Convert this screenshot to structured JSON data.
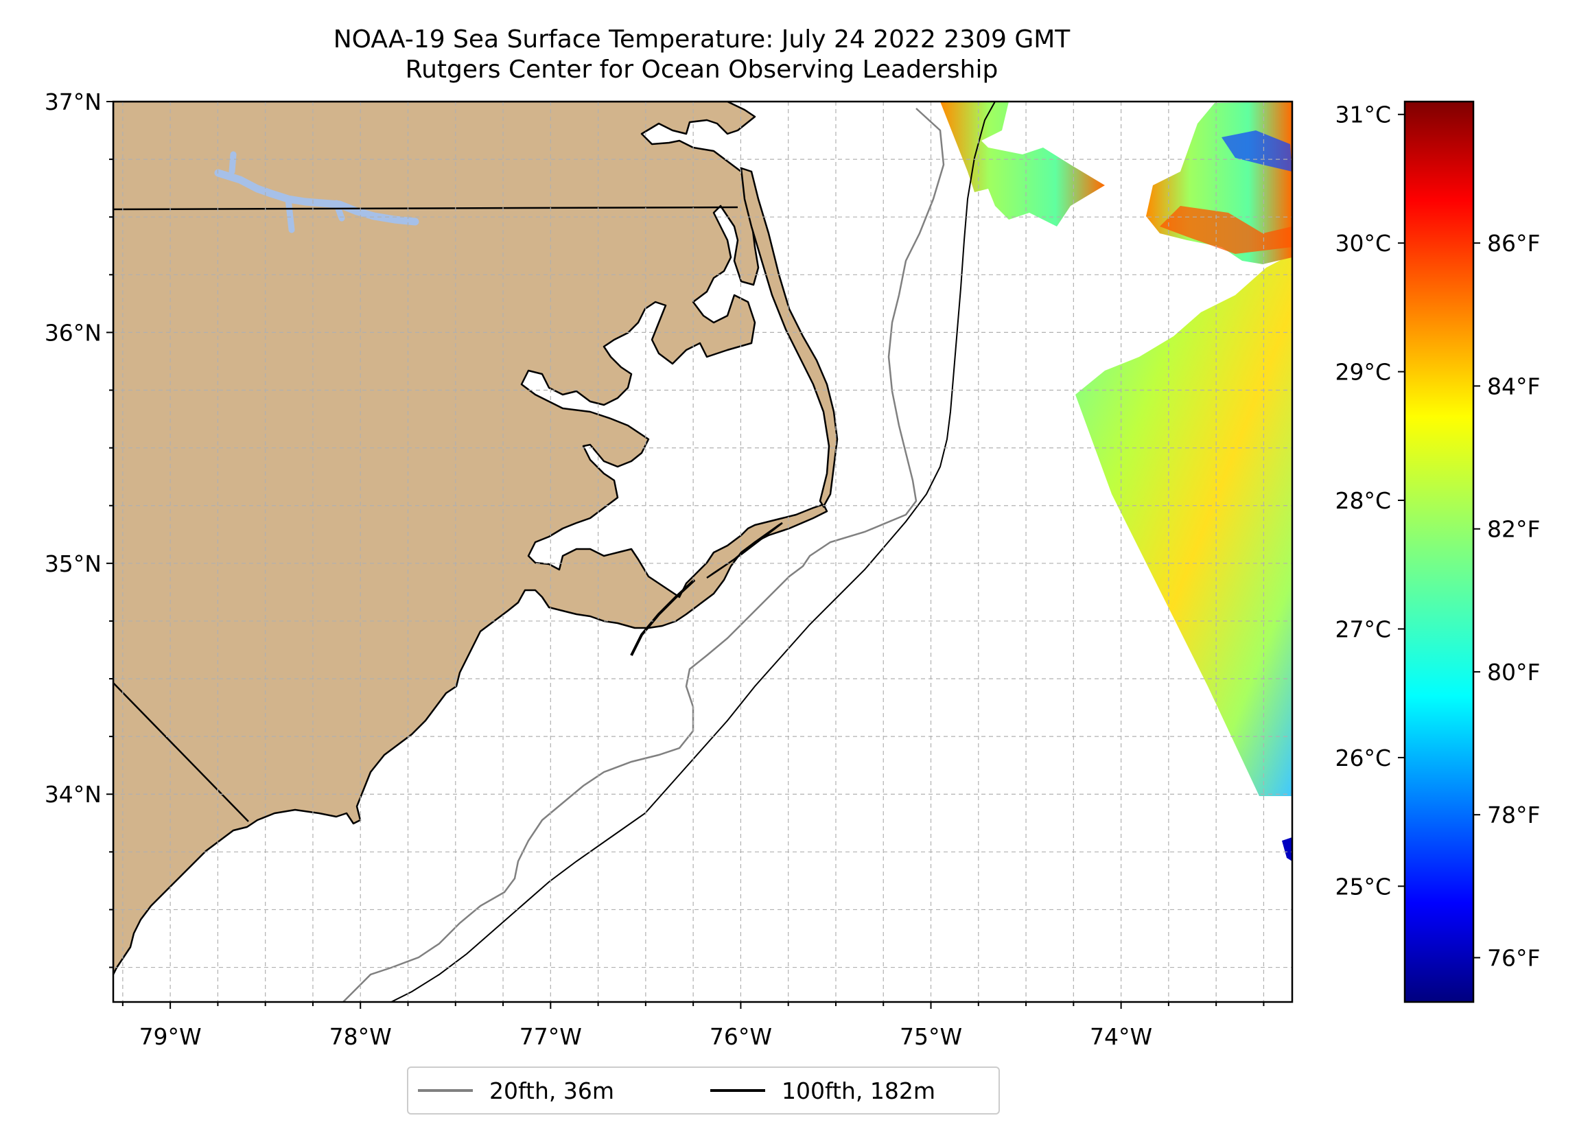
{
  "title": {
    "line1": "NOAA-19 Sea Surface Temperature: July 24 2022 2309 GMT",
    "line2": "Rutgers Center for Ocean Observing Leadership"
  },
  "map": {
    "lon_range": [
      -79.3,
      -73.1
    ],
    "lat_range": [
      33.1,
      37.0
    ],
    "lon_ticks": [
      "79°W",
      "78°W",
      "77°W",
      "76°W",
      "75°W",
      "74°W"
    ],
    "lat_ticks": [
      "37°N",
      "36°N",
      "35°N",
      "34°N"
    ],
    "gridlines": true,
    "land_color": "#d2b48c",
    "lake_color": "#a6c0e8",
    "isobath_20_color": "#808080",
    "isobath_100_color": "#000000"
  },
  "colorbar": {
    "colormap": "jet",
    "celsius_ticks": [
      "31°C",
      "30°C",
      "29°C",
      "28°C",
      "27°C",
      "26°C",
      "25°C"
    ],
    "fahrenheit_ticks": [
      "86°F",
      "84°F",
      "82°F",
      "80°F",
      "78°F",
      "76°F"
    ]
  },
  "legend": {
    "placement": "bottom-center",
    "items": [
      {
        "label": "20fth, 36m",
        "color": "#808080"
      },
      {
        "label": "100fth, 182m",
        "color": "#000000"
      }
    ]
  }
}
